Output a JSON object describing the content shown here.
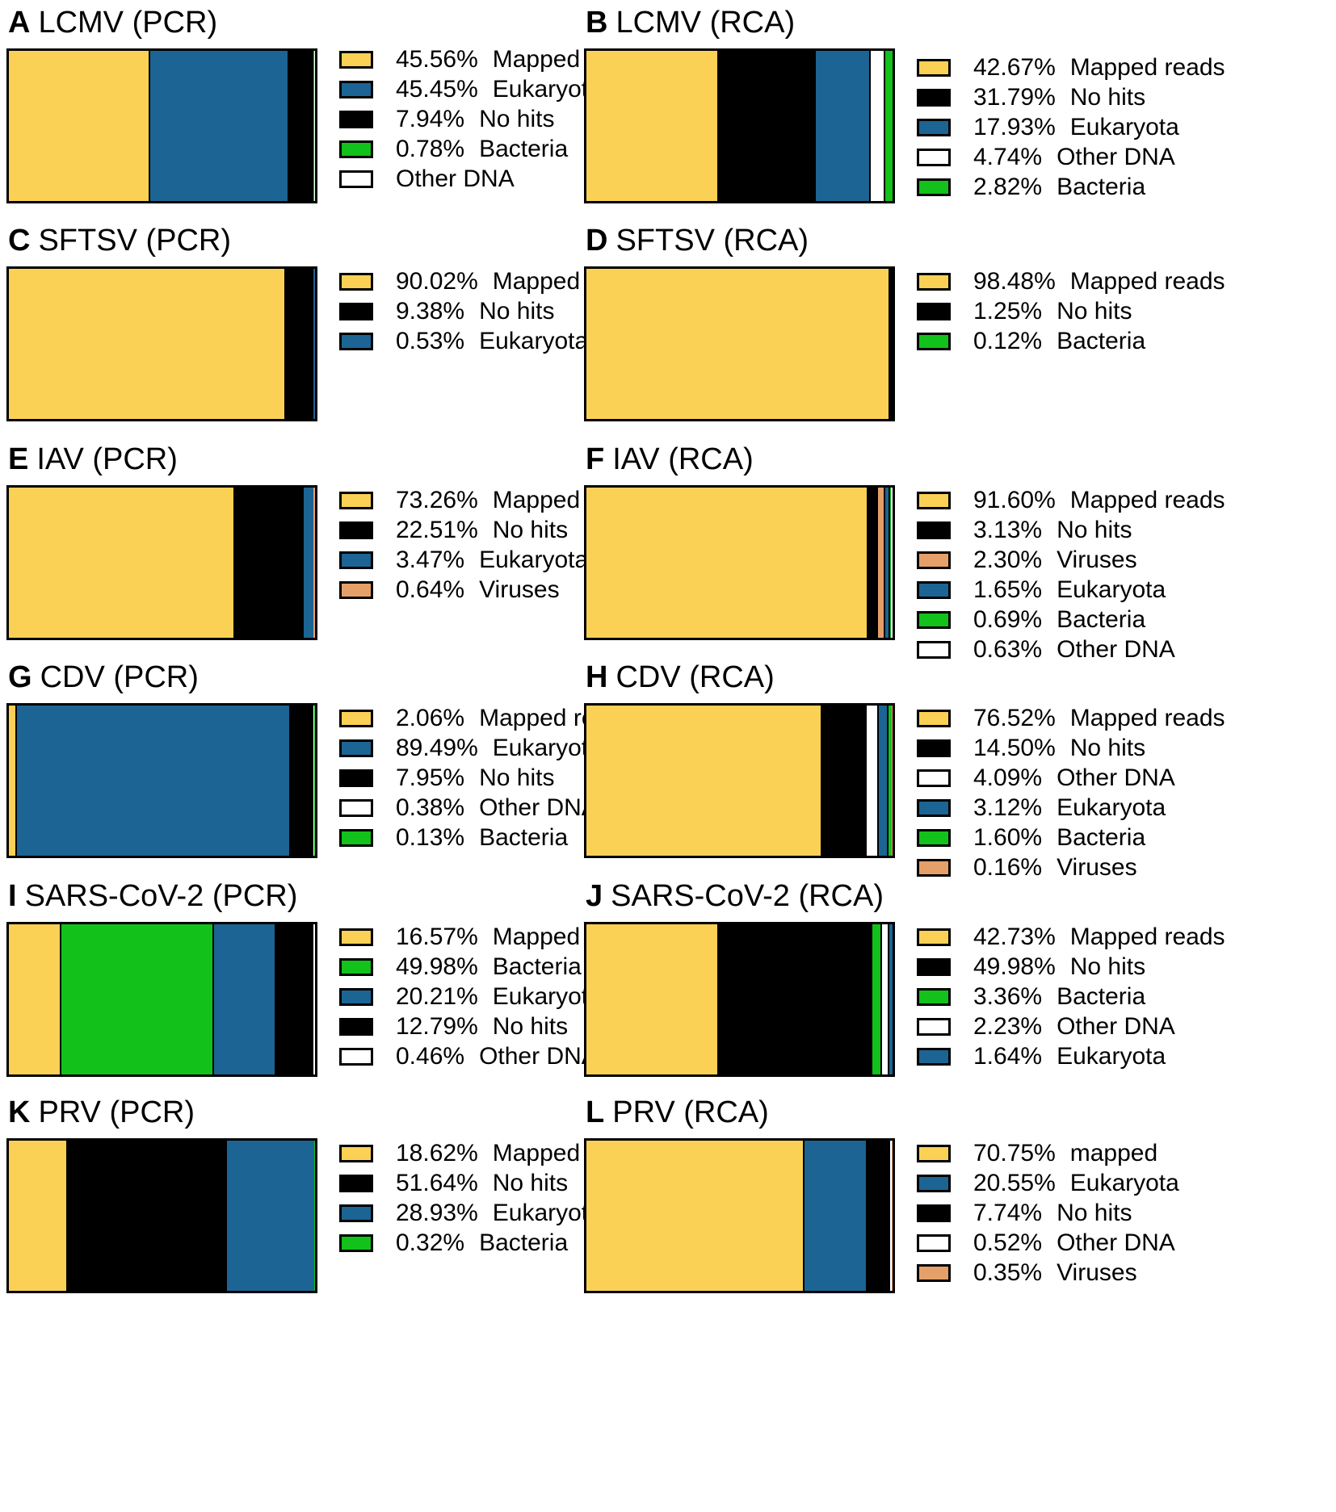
{
  "colors": {
    "Mapped reads": "#fad155",
    "mapped": "#fad155",
    "Eukaryota": "#1c6493",
    "No hits": "#000000",
    "Bacteria": "#12c11a",
    "Other DNA": "#ffffff",
    "Viruses": "#e5a06a"
  },
  "chart_data": [
    {
      "type": "bar",
      "panel": "A",
      "title": "LCMV (PCR)",
      "categories": [
        "Mapped reads",
        "Eukaryota",
        "No hits",
        "Bacteria",
        "Other DNA"
      ],
      "labels": [
        "45.56%",
        "45.45%",
        "7.94%",
        "0.78%",
        ""
      ],
      "values": [
        45.56,
        45.45,
        7.94,
        0.78,
        0.27
      ]
    },
    {
      "type": "bar",
      "panel": "B",
      "title": "LCMV (RCA)",
      "categories": [
        "Mapped reads",
        "No hits",
        "Eukaryota",
        "Other DNA",
        "Bacteria"
      ],
      "labels": [
        "42.67%",
        "31.79%",
        "17.93%",
        "4.74%",
        "2.82%"
      ],
      "values": [
        42.67,
        31.79,
        17.93,
        4.74,
        2.82
      ]
    },
    {
      "type": "bar",
      "panel": "C",
      "title": "SFTSV (PCR)",
      "categories": [
        "Mapped reads",
        "No hits",
        "Eukaryota"
      ],
      "labels": [
        "90.02%",
        "9.38%",
        "0.53%"
      ],
      "values": [
        90.02,
        9.38,
        0.53
      ]
    },
    {
      "type": "bar",
      "panel": "D",
      "title": "SFTSV (RCA)",
      "categories": [
        "Mapped reads",
        "No hits",
        "Bacteria"
      ],
      "labels": [
        "98.48%",
        "1.25%",
        "0.12%"
      ],
      "values": [
        98.48,
        1.25,
        0.12
      ]
    },
    {
      "type": "bar",
      "panel": "E",
      "title": "IAV (PCR)",
      "categories": [
        "Mapped reads",
        "No hits",
        "Eukaryota",
        "Viruses"
      ],
      "labels": [
        "73.26%",
        "22.51%",
        "3.47%",
        "0.64%"
      ],
      "values": [
        73.26,
        22.51,
        3.47,
        0.64
      ]
    },
    {
      "type": "bar",
      "panel": "F",
      "title": "IAV (RCA)",
      "categories": [
        "Mapped reads",
        "No hits",
        "Viruses",
        "Eukaryota",
        "Bacteria",
        "Other DNA"
      ],
      "labels": [
        "91.60%",
        "3.13%",
        "2.30%",
        "1.65%",
        "0.69%",
        "0.63%"
      ],
      "values": [
        91.6,
        3.13,
        2.3,
        1.65,
        0.69,
        0.63
      ]
    },
    {
      "type": "bar",
      "panel": "G",
      "title": "CDV (PCR)",
      "categories": [
        "Mapped reads",
        "Eukaryota",
        "No hits",
        "Other DNA",
        "Bacteria"
      ],
      "labels": [
        "2.06%",
        "89.49%",
        "7.95%",
        "0.38%",
        "0.13%"
      ],
      "values": [
        2.06,
        89.49,
        7.95,
        0.38,
        0.13
      ]
    },
    {
      "type": "bar",
      "panel": "H",
      "title": "CDV (RCA)",
      "categories": [
        "Mapped reads",
        "No hits",
        "Other DNA",
        "Eukaryota",
        "Bacteria",
        "Viruses"
      ],
      "labels": [
        "76.52%",
        "14.50%",
        "4.09%",
        "3.12%",
        "1.60%",
        "0.16%"
      ],
      "values": [
        76.52,
        14.5,
        4.09,
        3.12,
        1.6,
        0.16
      ]
    },
    {
      "type": "bar",
      "panel": "I",
      "title": "SARS-CoV-2 (PCR)",
      "categories": [
        "Mapped reads",
        "Bacteria",
        "Eukaryota",
        "No hits",
        "Other DNA"
      ],
      "labels": [
        "16.57%",
        "49.98%",
        "20.21%",
        "12.79%",
        "0.46%"
      ],
      "values": [
        16.57,
        49.98,
        20.21,
        12.79,
        0.46
      ]
    },
    {
      "type": "bar",
      "panel": "J",
      "title": "SARS-CoV-2 (RCA)",
      "categories": [
        "Mapped reads",
        "No hits",
        "Bacteria",
        "Other DNA",
        "Eukaryota"
      ],
      "labels": [
        "42.73%",
        "49.98%",
        "3.36%",
        "2.23%",
        "1.64%"
      ],
      "values": [
        42.73,
        49.98,
        3.36,
        2.23,
        1.64
      ]
    },
    {
      "type": "bar",
      "panel": "K",
      "title": "PRV (PCR)",
      "categories": [
        "Mapped reads",
        "No hits",
        "Eukaryota",
        "Bacteria"
      ],
      "labels": [
        "18.62%",
        "51.64%",
        "28.93%",
        "0.32%"
      ],
      "values": [
        18.62,
        51.64,
        28.93,
        0.32
      ]
    },
    {
      "type": "bar",
      "panel": "L",
      "title": "PRV (RCA)",
      "categories": [
        "mapped",
        "Eukaryota",
        "No hits",
        "Other DNA",
        "Viruses"
      ],
      "labels": [
        "70.75%",
        "20.55%",
        "7.74%",
        "0.52%",
        "0.35%"
      ],
      "values": [
        70.75,
        20.55,
        7.74,
        0.52,
        0.35
      ]
    }
  ]
}
